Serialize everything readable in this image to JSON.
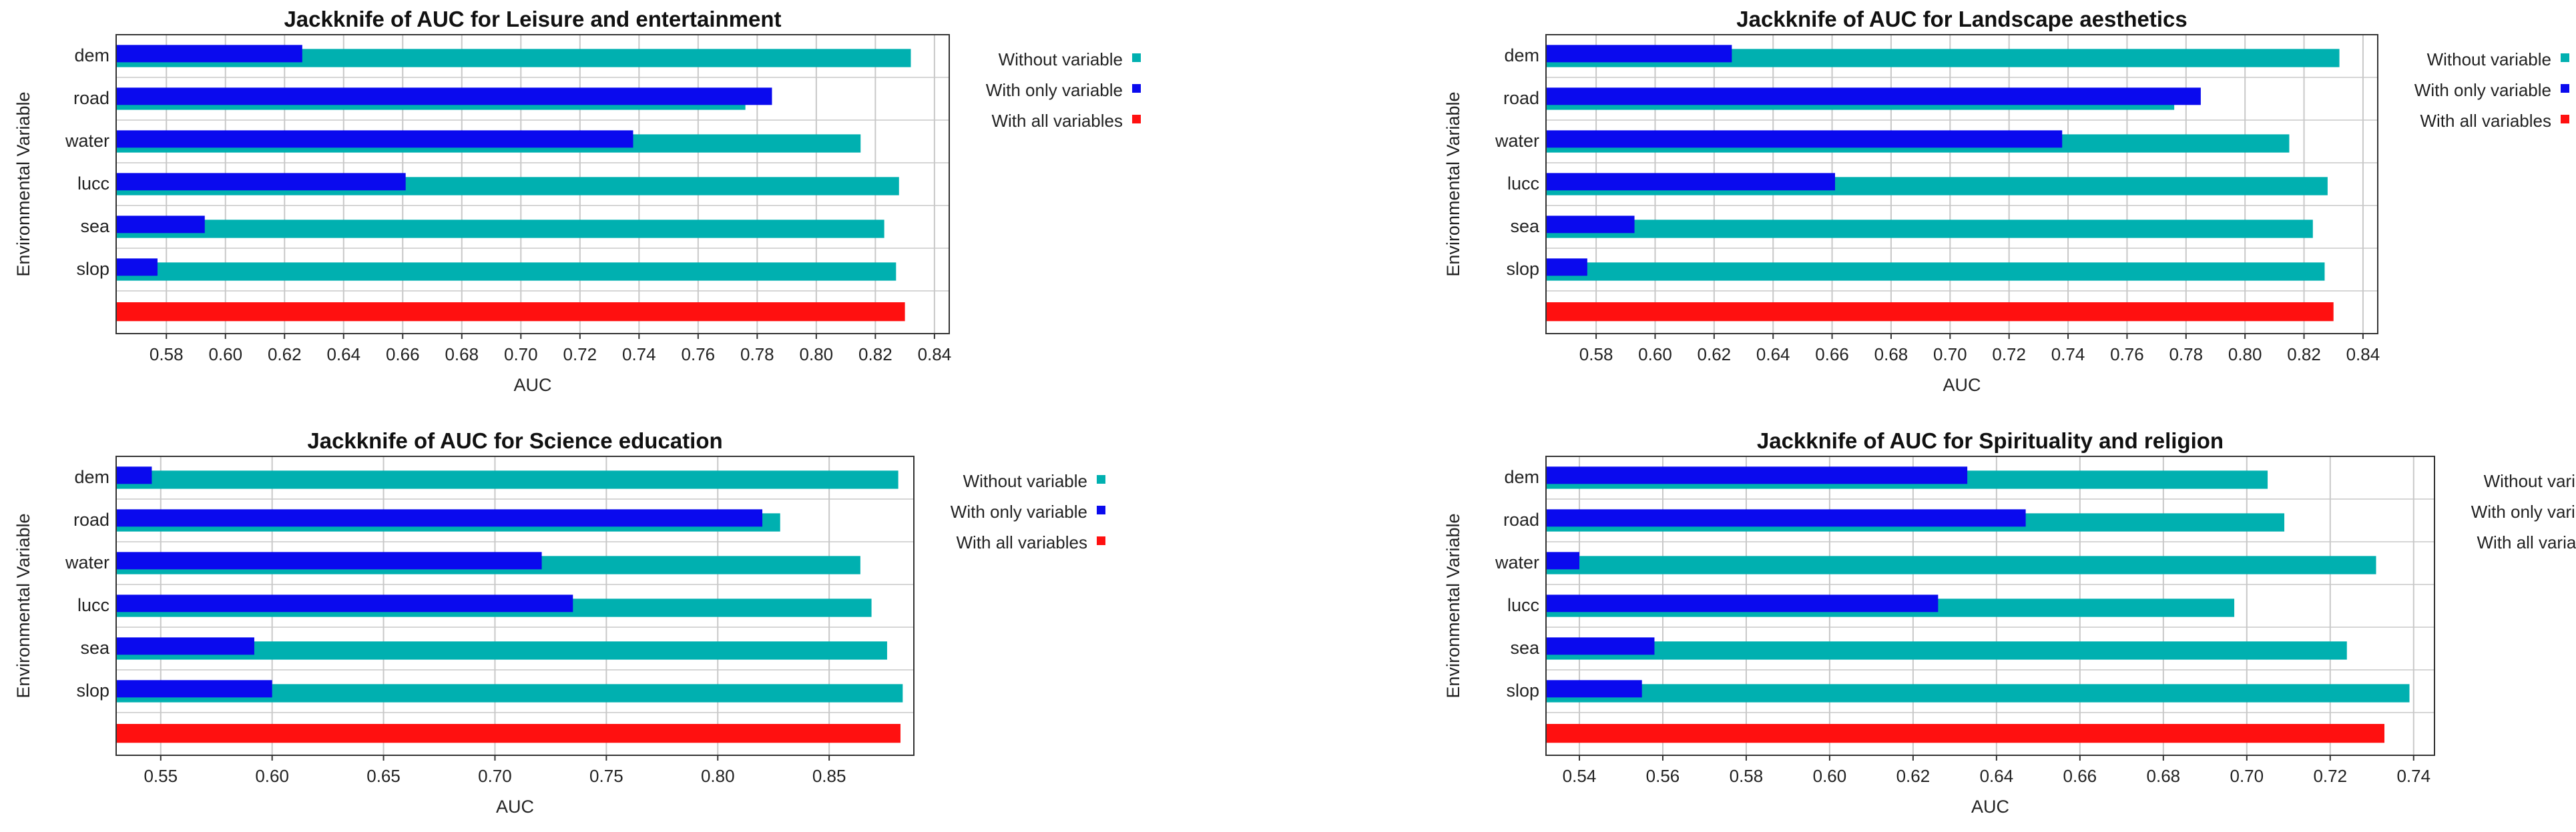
{
  "colors": {
    "without": "#00b0b0",
    "with_only": "#0a0aee",
    "with_all": "#ff1010",
    "grid": "#c8c8c8",
    "axis": "#333333"
  },
  "chart_data": [
    {
      "type": "bar",
      "orientation": "horizontal",
      "title": "Jackknife of AUC for Leisure and entertainment",
      "xlabel": "AUC",
      "ylabel": "Environmental Variable",
      "xlim": [
        0.563,
        0.845
      ],
      "xticks": [
        "0.58",
        "0.60",
        "0.62",
        "0.64",
        "0.66",
        "0.68",
        "0.70",
        "0.72",
        "0.74",
        "0.76",
        "0.78",
        "0.80",
        "0.82",
        "0.84"
      ],
      "categories": [
        "dem",
        "road",
        "water",
        "lucc",
        "sea",
        "slop"
      ],
      "series": [
        {
          "name": "Without variable",
          "values": [
            0.832,
            0.776,
            0.815,
            0.828,
            0.823,
            0.827
          ]
        },
        {
          "name": "With only variable",
          "values": [
            0.626,
            0.785,
            0.738,
            0.661,
            0.593,
            0.577
          ]
        }
      ],
      "all_variables": {
        "name": "With all variables",
        "value": 0.83
      },
      "legend": [
        "Without variable",
        "With only variable",
        "With all variables"
      ],
      "legend_position": "right"
    },
    {
      "type": "bar",
      "orientation": "horizontal",
      "title": "Jackknife of AUC for Landscape aesthetics",
      "xlabel": "AUC",
      "ylabel": "Environmental Variable",
      "xlim": [
        0.563,
        0.845
      ],
      "xticks": [
        "0.58",
        "0.60",
        "0.62",
        "0.64",
        "0.66",
        "0.68",
        "0.70",
        "0.72",
        "0.74",
        "0.76",
        "0.78",
        "0.80",
        "0.82",
        "0.84"
      ],
      "categories": [
        "dem",
        "road",
        "water",
        "lucc",
        "sea",
        "slop"
      ],
      "series": [
        {
          "name": "Without variable",
          "values": [
            0.832,
            0.776,
            0.815,
            0.828,
            0.823,
            0.827
          ]
        },
        {
          "name": "With only variable",
          "values": [
            0.626,
            0.785,
            0.738,
            0.661,
            0.593,
            0.577
          ]
        }
      ],
      "all_variables": {
        "name": "With all variables",
        "value": 0.83
      },
      "legend": [
        "Without variable",
        "With only variable",
        "With all variables"
      ],
      "legend_position": "right"
    },
    {
      "type": "bar",
      "orientation": "horizontal",
      "title": "Jackknife of AUC for Science education",
      "xlabel": "AUC",
      "ylabel": "Environmental Variable",
      "xlim": [
        0.53,
        0.888
      ],
      "xticks": [
        "0.55",
        "0.60",
        "0.65",
        "0.70",
        "0.75",
        "0.80",
        "0.85"
      ],
      "categories": [
        "dem",
        "road",
        "water",
        "lucc",
        "sea",
        "slop"
      ],
      "series": [
        {
          "name": "Without variable",
          "values": [
            0.881,
            0.828,
            0.864,
            0.869,
            0.876,
            0.883
          ]
        },
        {
          "name": "With only variable",
          "values": [
            0.546,
            0.82,
            0.721,
            0.735,
            0.592,
            0.6
          ]
        }
      ],
      "all_variables": {
        "name": "With all variables",
        "value": 0.882
      },
      "legend": [
        "Without variable",
        "With only variable",
        "With all variables"
      ],
      "legend_position": "right"
    },
    {
      "type": "bar",
      "orientation": "horizontal",
      "title": "Jackknife of AUC for Spirituality and religion",
      "xlabel": "AUC",
      "ylabel": "Environmental Variable",
      "xlim": [
        0.532,
        0.745
      ],
      "xticks": [
        "0.54",
        "0.56",
        "0.58",
        "0.60",
        "0.62",
        "0.64",
        "0.66",
        "0.68",
        "0.70",
        "0.72",
        "0.74"
      ],
      "categories": [
        "dem",
        "road",
        "water",
        "lucc",
        "sea",
        "slop"
      ],
      "series": [
        {
          "name": "Without variable",
          "values": [
            0.705,
            0.709,
            0.731,
            0.697,
            0.724,
            0.739
          ]
        },
        {
          "name": "With only variable",
          "values": [
            0.633,
            0.647,
            0.54,
            0.626,
            0.558,
            0.555
          ]
        }
      ],
      "all_variables": {
        "name": "With all variables",
        "value": 0.733
      },
      "legend": [
        "Without variable",
        "With only variable",
        "With all variables"
      ],
      "legend_position": "right"
    }
  ]
}
